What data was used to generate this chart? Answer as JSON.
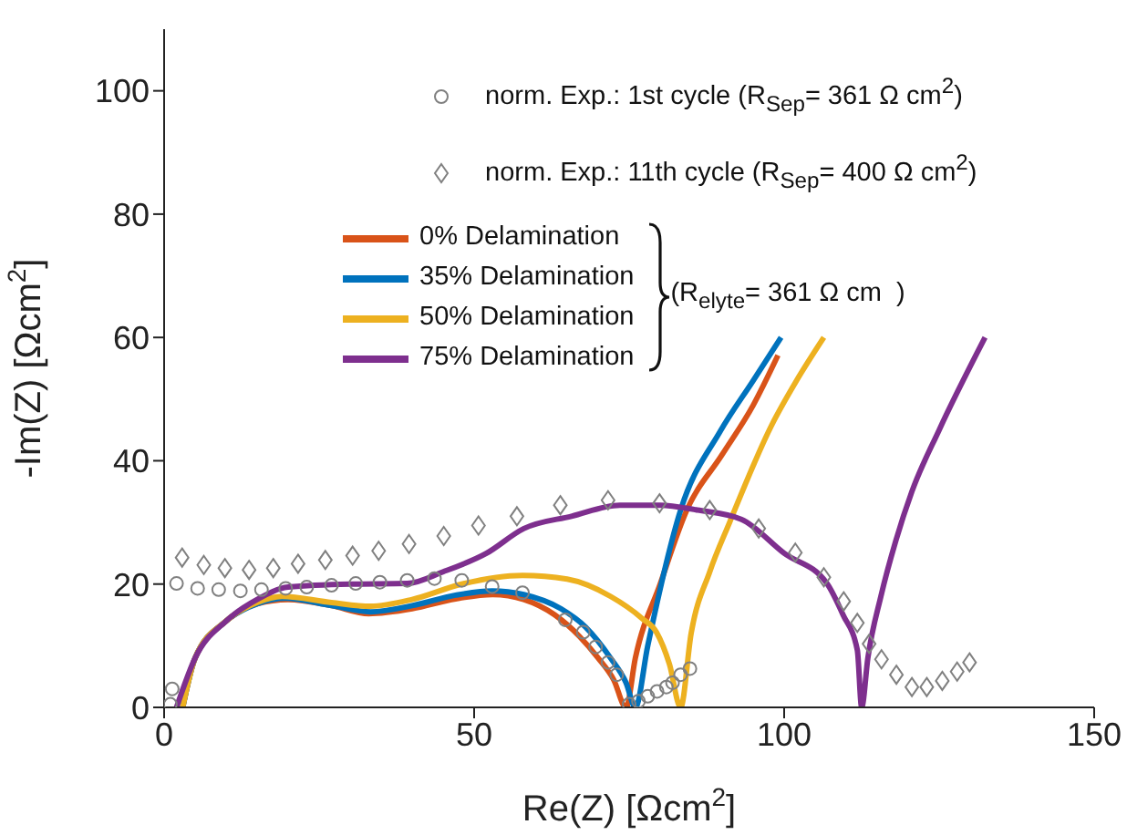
{
  "chart_data": {
    "type": "line",
    "xlabel": "Re(Z) [Ωcm$^{2}$]",
    "ylabel": "-Im(Z) [Ωcm$^{2}$]",
    "xlim": [
      0,
      150
    ],
    "xticks": [
      0,
      50,
      100,
      150
    ],
    "ylim": [
      0,
      110
    ],
    "yticks": [
      0,
      20,
      40,
      60,
      80,
      100
    ],
    "legend": "top right",
    "annotations": [
      "(R$_{elyte}$= 361 Ω cm  )"
    ],
    "series": [
      {
        "name": "norm. Exp.: 1st cycle (R$_{Sep}$= 361 Ω cm$^{2}$)",
        "type": "scatter",
        "marker": "circle",
        "color": "#808080",
        "x": [
          1,
          1.3,
          2,
          5.4,
          8.8,
          12.3,
          15.7,
          19.6,
          23.0,
          27.0,
          30.9,
          34.8,
          39.2,
          43.6,
          48.0,
          52.9,
          57.8,
          64.7,
          67.6,
          69.6,
          71.6,
          73,
          75,
          76.5,
          78,
          79.5,
          81,
          82,
          83.3,
          84.8
        ],
        "values": [
          0.5,
          3,
          20.1,
          19.3,
          19.1,
          18.9,
          19.1,
          19.3,
          19.5,
          19.8,
          20.1,
          20.3,
          20.6,
          20.9,
          20.6,
          19.6,
          18.6,
          14.2,
          12.2,
          9.8,
          7.3,
          5.3,
          0.5,
          1,
          1.8,
          2.6,
          3.3,
          4,
          5.3,
          6.3
        ]
      },
      {
        "name": "norm. Exp.: 11th cycle (R$_{Sep}$= 400 Ω cm$^{2}$)",
        "type": "scatter",
        "marker": "diamond",
        "color": "#808080",
        "x": [
          2.9,
          6.4,
          9.8,
          13.7,
          17.6,
          21.6,
          26.0,
          30.4,
          34.6,
          39.5,
          45.1,
          50.7,
          56.9,
          63.9,
          71.6,
          79.9,
          88.0,
          95.9,
          101.8,
          106.4,
          109.6,
          111.8,
          113.7,
          115.7,
          118.1,
          120.6,
          123,
          125.5,
          127.9,
          129.9
        ],
        "values": [
          24.3,
          23.1,
          22.6,
          22.3,
          22.6,
          23.3,
          23.9,
          24.6,
          25.4,
          26.5,
          27.8,
          29.5,
          31.0,
          32.8,
          33.6,
          33.1,
          32.0,
          29.0,
          25.1,
          21.1,
          17.2,
          13.7,
          10.3,
          7.8,
          5.3,
          3.3,
          3.3,
          4.3,
          5.8,
          7.3
        ]
      },
      {
        "name": "0% Delamination",
        "color": "#d95319",
        "x": [
          3,
          5,
          10,
          15,
          20,
          27,
          33,
          40,
          47,
          53,
          58,
          63,
          67,
          70,
          72.5,
          74.5,
          76,
          80,
          84.3,
          90,
          95,
          99
        ],
        "values": [
          0,
          8,
          14,
          16.8,
          17.5,
          16.5,
          15.2,
          16,
          17.6,
          18.3,
          17.5,
          15,
          11.5,
          8,
          4.5,
          0,
          8,
          20,
          32,
          41,
          49,
          57.1
        ]
      },
      {
        "name": "35% Delamination",
        "color": "#0072bd",
        "x": [
          3,
          5,
          10,
          15,
          19.6,
          27,
          33.3,
          40,
          47,
          52.9,
          58,
          64,
          68,
          72,
          74.5,
          76,
          78,
          83.3,
          89.7,
          95,
          99.5
        ],
        "values": [
          0,
          8,
          14,
          16.8,
          17.7,
          16.5,
          15.5,
          16.5,
          18.2,
          18.9,
          18.3,
          16,
          13,
          8,
          4,
          0,
          10,
          32,
          44.8,
          53,
          60
        ]
      },
      {
        "name": "50% Delamination",
        "color": "#edb120",
        "x": [
          3,
          5,
          10,
          15,
          19,
          27,
          33.3,
          40,
          48,
          57.8,
          65,
          72,
          77,
          79.4,
          81.5,
          83.3,
          85,
          88,
          91.2,
          98,
          102,
          106.4
        ],
        "values": [
          0,
          8,
          14,
          17,
          18,
          17,
          16.4,
          17.5,
          20,
          21.4,
          20.8,
          18,
          14.5,
          12.2,
          7,
          0,
          12,
          22,
          30,
          45.8,
          53,
          60
        ]
      },
      {
        "name": "75% Delamination",
        "color": "#7e2f8e",
        "x": [
          2,
          5,
          10,
          15,
          20,
          30,
          39.2,
          45,
          52,
          58,
          65.7,
          73.5,
          80,
          86,
          93.1,
          100,
          106.9,
          109.5,
          111.8,
          112.5,
          113.5,
          115.6,
          118,
          120.6,
          125,
          132.4
        ],
        "values": [
          0,
          8,
          14,
          17.5,
          19.5,
          20,
          20.1,
          22,
          25,
          29,
          31,
          32.8,
          32.8,
          32,
          30.5,
          25,
          20.1,
          15,
          9.3,
          0,
          8,
          18,
          27,
          35,
          45,
          60
        ]
      }
    ]
  }
}
